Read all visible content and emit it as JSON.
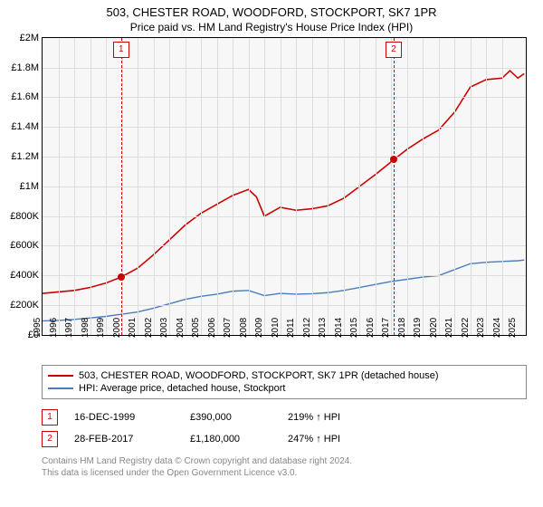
{
  "titles": {
    "line1": "503, CHESTER ROAD, WOODFORD, STOCKPORT, SK7 1PR",
    "line2": "Price paid vs. HM Land Registry's House Price Index (HPI)"
  },
  "chart": {
    "type": "line",
    "background_color": "#f7f7f7",
    "grid_color": "#dcdcdc",
    "border_color": "#000000",
    "x": {
      "min": 1995,
      "max": 2025.5,
      "ticks": [
        1995,
        1996,
        1997,
        1998,
        1999,
        2000,
        2001,
        2002,
        2003,
        2004,
        2005,
        2006,
        2007,
        2008,
        2009,
        2010,
        2011,
        2012,
        2013,
        2014,
        2015,
        2016,
        2017,
        2018,
        2019,
        2020,
        2021,
        2022,
        2023,
        2024,
        2025
      ]
    },
    "y": {
      "min": 0,
      "max": 2000000,
      "ticks": [
        0,
        200000,
        400000,
        600000,
        800000,
        1000000,
        1200000,
        1400000,
        1600000,
        1800000,
        2000000
      ],
      "tick_labels": [
        "£0",
        "£200K",
        "£400K",
        "£600K",
        "£800K",
        "£1M",
        "£1.2M",
        "£1.4M",
        "£1.6M",
        "£1.8M",
        "£2M"
      ]
    },
    "series": [
      {
        "name": "price_paid",
        "label": "503, CHESTER ROAD, WOODFORD, STOCKPORT, SK7 1PR (detached house)",
        "color": "#cc0000",
        "line_width": 1.6,
        "points": [
          [
            1995,
            280000
          ],
          [
            1996,
            290000
          ],
          [
            1997,
            300000
          ],
          [
            1998,
            320000
          ],
          [
            1999,
            350000
          ],
          [
            1999.96,
            390000
          ],
          [
            2001,
            450000
          ],
          [
            2002,
            540000
          ],
          [
            2003,
            640000
          ],
          [
            2004,
            740000
          ],
          [
            2005,
            820000
          ],
          [
            2006,
            880000
          ],
          [
            2007,
            940000
          ],
          [
            2008,
            980000
          ],
          [
            2008.5,
            930000
          ],
          [
            2009,
            800000
          ],
          [
            2010,
            860000
          ],
          [
            2011,
            840000
          ],
          [
            2012,
            850000
          ],
          [
            2013,
            870000
          ],
          [
            2014,
            920000
          ],
          [
            2015,
            1000000
          ],
          [
            2016,
            1080000
          ],
          [
            2017.16,
            1180000
          ],
          [
            2018,
            1250000
          ],
          [
            2019,
            1320000
          ],
          [
            2020,
            1380000
          ],
          [
            2021,
            1500000
          ],
          [
            2022,
            1670000
          ],
          [
            2023,
            1720000
          ],
          [
            2024,
            1730000
          ],
          [
            2024.5,
            1780000
          ],
          [
            2025,
            1730000
          ],
          [
            2025.4,
            1760000
          ]
        ]
      },
      {
        "name": "hpi",
        "label": "HPI: Average price, detached house, Stockport",
        "color": "#4a7ebb",
        "line_width": 1.4,
        "points": [
          [
            1995,
            95000
          ],
          [
            1996,
            98000
          ],
          [
            1997,
            105000
          ],
          [
            1998,
            115000
          ],
          [
            1999,
            125000
          ],
          [
            2000,
            140000
          ],
          [
            2001,
            155000
          ],
          [
            2002,
            180000
          ],
          [
            2003,
            210000
          ],
          [
            2004,
            240000
          ],
          [
            2005,
            260000
          ],
          [
            2006,
            275000
          ],
          [
            2007,
            295000
          ],
          [
            2008,
            300000
          ],
          [
            2009,
            265000
          ],
          [
            2010,
            280000
          ],
          [
            2011,
            275000
          ],
          [
            2012,
            278000
          ],
          [
            2013,
            285000
          ],
          [
            2014,
            300000
          ],
          [
            2015,
            320000
          ],
          [
            2016,
            340000
          ],
          [
            2017,
            360000
          ],
          [
            2018,
            375000
          ],
          [
            2019,
            390000
          ],
          [
            2020,
            400000
          ],
          [
            2021,
            440000
          ],
          [
            2022,
            480000
          ],
          [
            2023,
            490000
          ],
          [
            2024,
            495000
          ],
          [
            2025,
            500000
          ],
          [
            2025.4,
            505000
          ]
        ]
      }
    ],
    "events": [
      {
        "id": "1",
        "date_label": "16-DEC-1999",
        "x": 1999.96,
        "price": 390000,
        "price_label": "£390,000",
        "ratio_label": "219% ↑ HPI"
      },
      {
        "id": "2",
        "date_label": "28-FEB-2017",
        "x": 2017.16,
        "price": 1180000,
        "price_label": "£1,180,000",
        "ratio_label": "247% ↑ HPI"
      }
    ]
  },
  "legend": {
    "row1": "503, CHESTER ROAD, WOODFORD, STOCKPORT, SK7 1PR (detached house)",
    "row2": "HPI: Average price, detached house, Stockport"
  },
  "footer": {
    "line1": "Contains HM Land Registry data © Crown copyright and database right 2024.",
    "line2": "This data is licensed under the Open Government Licence v3.0."
  }
}
